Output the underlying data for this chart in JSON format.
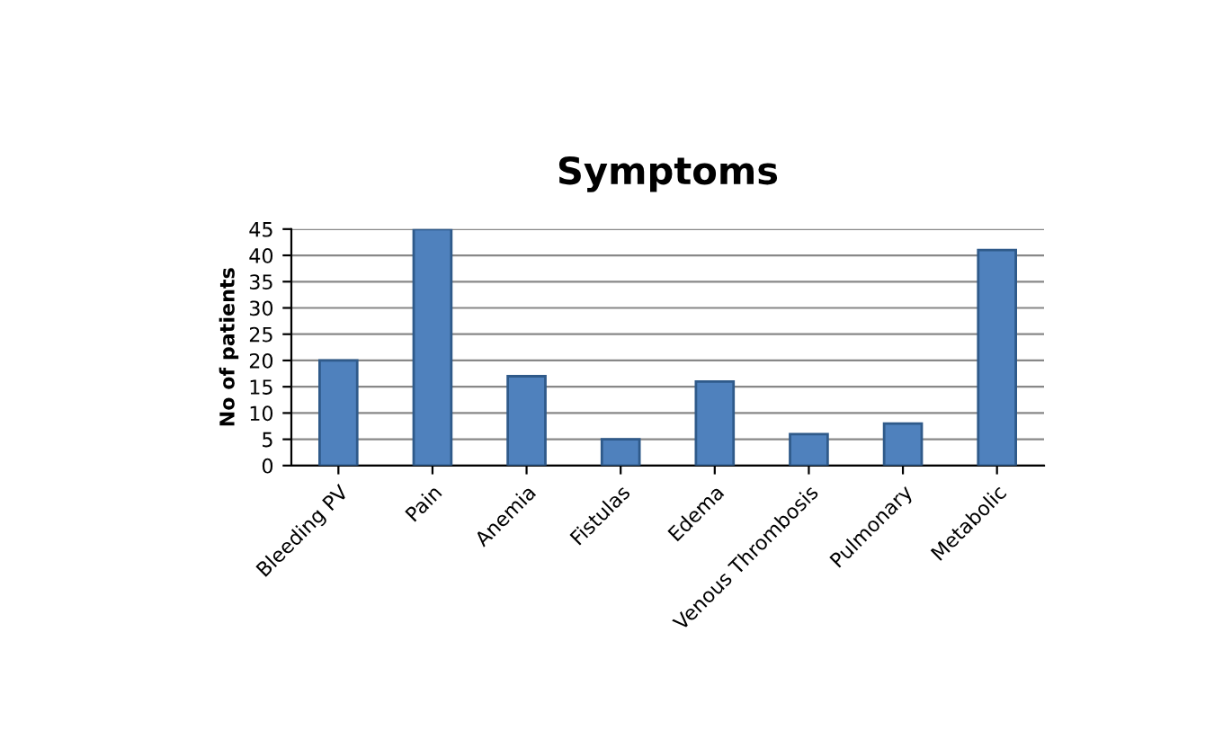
{
  "chart_data": {
    "type": "bar",
    "title": "Symptoms",
    "ylabel": "No of patients",
    "categories": [
      "Bleeding PV",
      "Pain",
      "Anemia",
      "Fistulas",
      "Edema",
      "Venous Thrombosis",
      "Pulmonary",
      "Metabolic"
    ],
    "values": [
      20,
      45,
      17,
      5,
      16,
      6,
      8,
      41
    ],
    "color": "#4f81bd",
    "ylim": [
      0,
      45
    ],
    "yticks": [
      0,
      5,
      10,
      15,
      20,
      25,
      30,
      35,
      40,
      45
    ],
    "grid": "y"
  }
}
